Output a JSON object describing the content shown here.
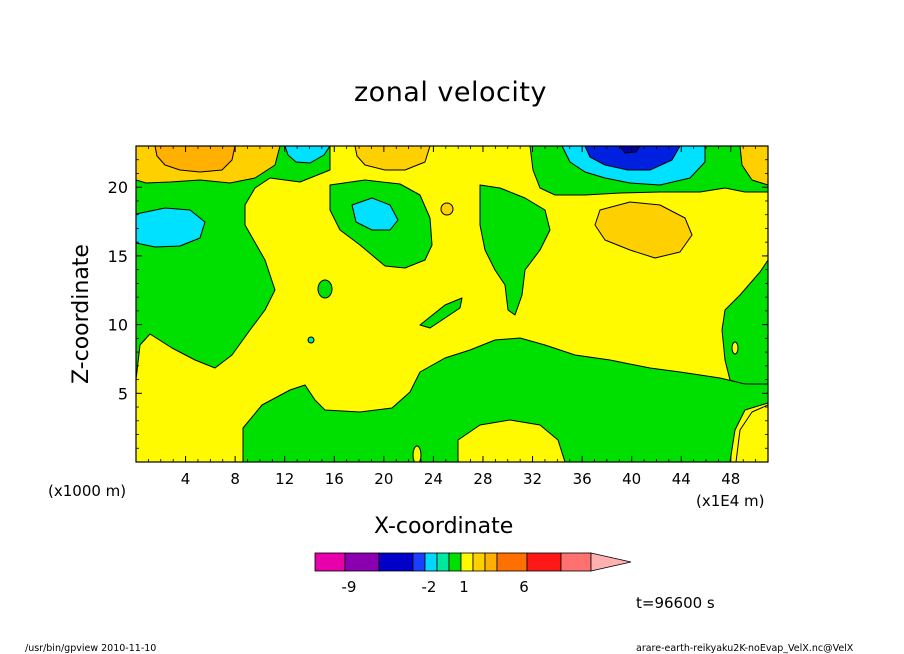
{
  "chart_data": {
    "type": "contour",
    "title": "zonal velocity",
    "xlabel": "X-coordinate",
    "ylabel": "Z-coordinate",
    "x_unit_left": "(x1000 m)",
    "x_unit_right": "(x1E4 m)",
    "xlim": [
      0,
      51
    ],
    "ylim": [
      0,
      23
    ],
    "x_ticks": [
      4,
      8,
      12,
      16,
      20,
      24,
      28,
      32,
      36,
      40,
      44,
      48
    ],
    "y_ticks": [
      5,
      10,
      15,
      20
    ],
    "time_label": "t=96600 s",
    "colorbar": {
      "levels_colors": [
        "#e800aa",
        "#8a00b0",
        "#0000c8",
        "#1a40ff",
        "#00d8ff",
        "#00e8a0",
        "#00e000",
        "#fffa00",
        "#ffd000",
        "#ffb000",
        "#ff7000",
        "#ff1818",
        "#ff7070",
        "#ffb0b0"
      ],
      "tick_labels": [
        "-9",
        "-2",
        "1",
        "6"
      ]
    },
    "regions": [
      {
        "value_range": "0 to 1",
        "color": "#fffa00",
        "description": "background, positive weak"
      },
      {
        "value_range": "-1 to 0",
        "color": "#00e000"
      },
      {
        "value_range": "1 to 3",
        "color": "#ffd000"
      },
      {
        "value_range": "-2 to -1",
        "color": "#00e0ff"
      },
      {
        "value_range": "< -4",
        "color": "#0020e0"
      }
    ]
  },
  "footer": {
    "left": "/usr/bin/gpview   2010-11-10",
    "right": "arare-earth-reikyaku2K-noEvap_VelX.nc@VelX"
  }
}
